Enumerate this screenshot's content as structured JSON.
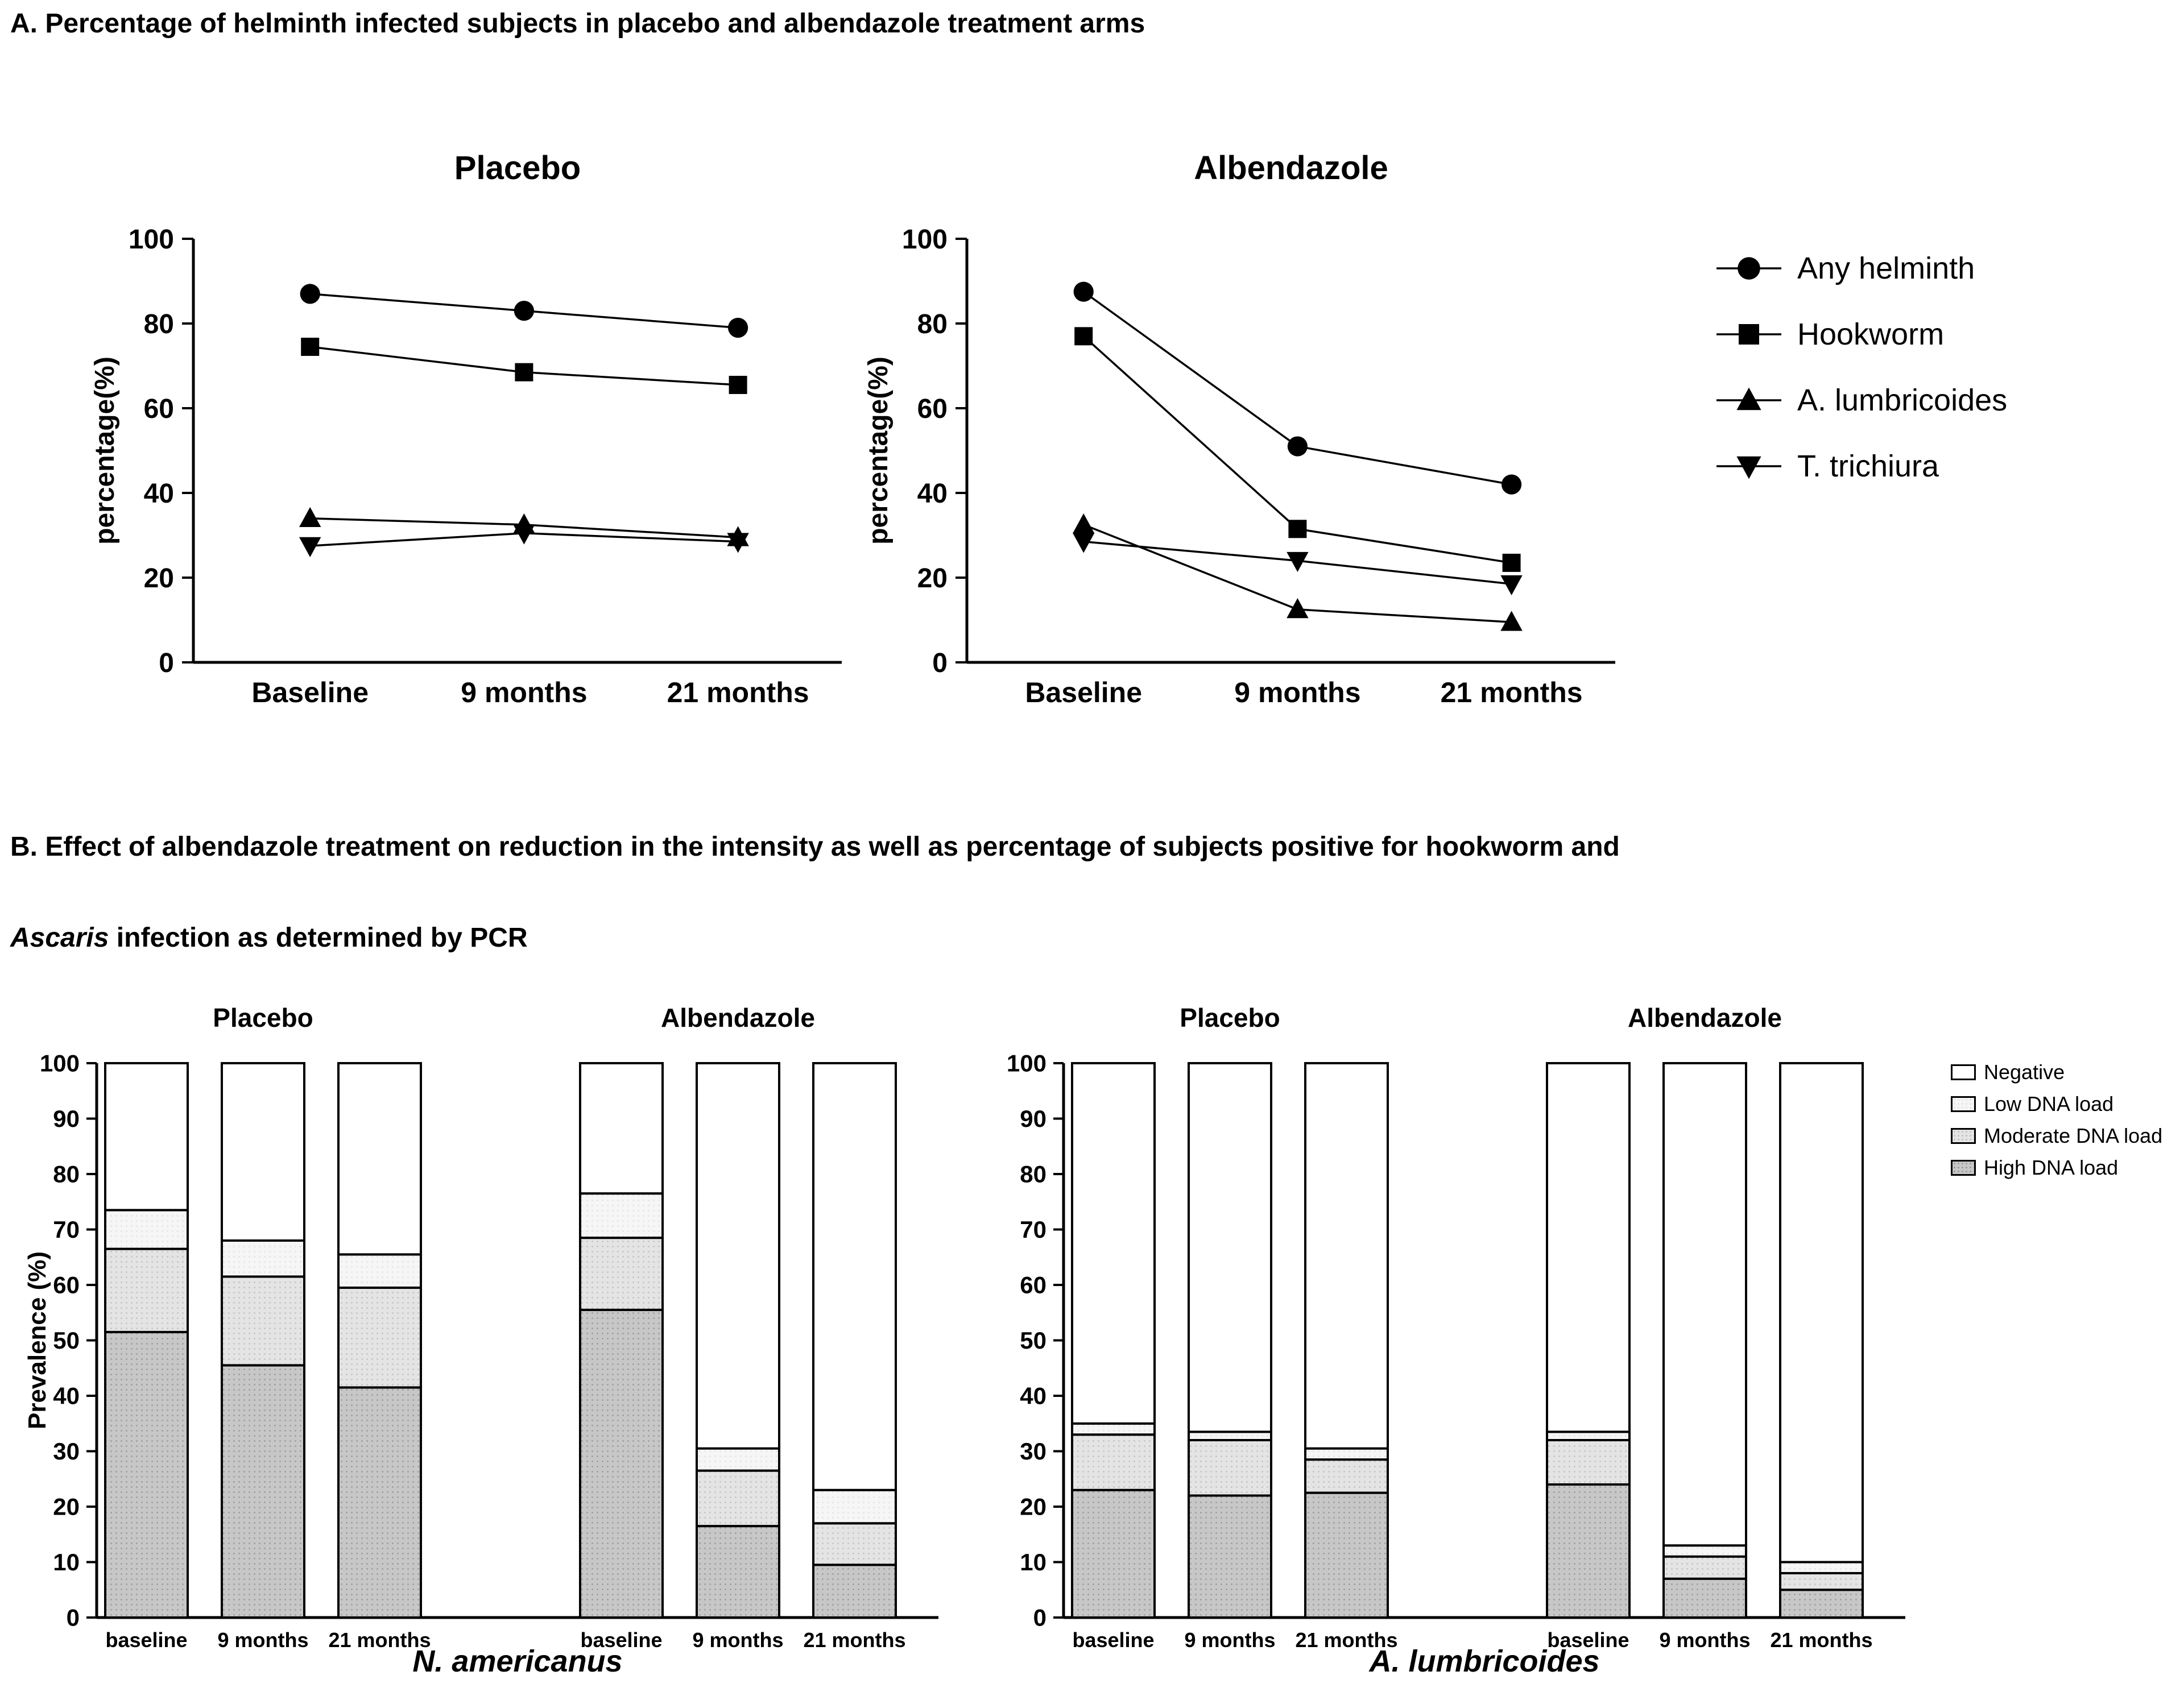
{
  "panel_a": {
    "title": "A. Percentage of helminth infected subjects in placebo and albendazole treatment arms",
    "legend": [
      {
        "label": "Any helminth",
        "marker": "circle"
      },
      {
        "label": "Hookworm",
        "marker": "square"
      },
      {
        "label": "A. lumbricoides",
        "marker": "triangle-up"
      },
      {
        "label": "T. trichiura",
        "marker": "triangle-down"
      }
    ]
  },
  "panel_b": {
    "title_line1": "B. Effect of albendazole treatment on reduction in the intensity as well as percentage of subjects positive for hookworm and",
    "title_italic": "Ascaris",
    "title_rest": " infection as determined by PCR",
    "legend": [
      {
        "label": "Negative",
        "key": "negative"
      },
      {
        "label": "Low DNA load",
        "key": "low"
      },
      {
        "label": "Moderate DNA load",
        "key": "moderate"
      },
      {
        "label": "High DNA load",
        "key": "high"
      }
    ],
    "colors": {
      "high": {
        "bg": "#c7c7c7",
        "dot": "#9b9b9b"
      },
      "moderate": {
        "bg": "#e4e4e4",
        "dot": "#c2c2c2"
      },
      "low": {
        "bg": "#f6f6f6",
        "dot": "#e3e3e3"
      },
      "negative": {
        "bg": "#ffffff",
        "dot": "#ffffff"
      }
    }
  },
  "chart_data": [
    {
      "id": "a-placebo",
      "type": "line",
      "title": "Placebo",
      "ylabel": "percentage(%)",
      "ylim": [
        0,
        100
      ],
      "yticks": [
        0,
        20,
        40,
        60,
        80,
        100
      ],
      "categories": [
        "Baseline",
        "9 months",
        "21 months"
      ],
      "series": [
        {
          "name": "Any helminth",
          "marker": "circle",
          "values": [
            87,
            83,
            79
          ]
        },
        {
          "name": "Hookworm",
          "marker": "square",
          "values": [
            74.5,
            68.5,
            65.5
          ]
        },
        {
          "name": "A. lumbricoides",
          "marker": "triangle-up",
          "values": [
            34,
            32.5,
            29.5
          ]
        },
        {
          "name": "T. trichiura",
          "marker": "triangle-down",
          "values": [
            27.5,
            30.5,
            28.5
          ]
        }
      ]
    },
    {
      "id": "a-albendazole",
      "type": "line",
      "title": "Albendazole",
      "ylabel": "percentage(%)",
      "ylim": [
        0,
        100
      ],
      "yticks": [
        0,
        20,
        40,
        60,
        80,
        100
      ],
      "categories": [
        "Baseline",
        "9 months",
        "21 months"
      ],
      "series": [
        {
          "name": "Any helminth",
          "marker": "circle",
          "values": [
            87.5,
            51,
            42
          ]
        },
        {
          "name": "Hookworm",
          "marker": "square",
          "values": [
            77,
            31.5,
            23.5
          ]
        },
        {
          "name": "A. lumbricoides",
          "marker": "triangle-up",
          "values": [
            32.5,
            12.5,
            9.5
          ]
        },
        {
          "name": "T. trichiura",
          "marker": "triangle-down",
          "values": [
            28.5,
            24,
            18.5
          ]
        }
      ]
    },
    {
      "id": "b-namericanus",
      "type": "stacked-bar",
      "xlabel": "N. americanus",
      "ylabel": "Prevalence (%)",
      "ylim": [
        0,
        100
      ],
      "yticks": [
        0,
        10,
        20,
        30,
        40,
        50,
        60,
        70,
        80,
        90,
        100
      ],
      "categories": [
        "baseline",
        "9 months",
        "21 months"
      ],
      "groups": [
        {
          "title": "Placebo",
          "bars": [
            {
              "category": "baseline",
              "values": {
                "high": 51.5,
                "moderate": 15,
                "low": 7,
                "negative": 26.5
              }
            },
            {
              "category": "9 months",
              "values": {
                "high": 45.5,
                "moderate": 16,
                "low": 6.5,
                "negative": 32
              }
            },
            {
              "category": "21 months",
              "values": {
                "high": 41.5,
                "moderate": 18,
                "low": 6,
                "negative": 34.5
              }
            }
          ]
        },
        {
          "title": "Albendazole",
          "bars": [
            {
              "category": "baseline",
              "values": {
                "high": 55.5,
                "moderate": 13,
                "low": 8,
                "negative": 23.5
              }
            },
            {
              "category": "9 months",
              "values": {
                "high": 16.5,
                "moderate": 10,
                "low": 4,
                "negative": 69.5
              }
            },
            {
              "category": "21 months",
              "values": {
                "high": 9.5,
                "moderate": 7.5,
                "low": 6,
                "negative": 77
              }
            }
          ]
        }
      ]
    },
    {
      "id": "b-alumbricoides",
      "type": "stacked-bar",
      "xlabel": "A. lumbricoides",
      "ylabel": "",
      "ylim": [
        0,
        100
      ],
      "yticks": [
        0,
        10,
        20,
        30,
        40,
        50,
        60,
        70,
        80,
        90,
        100
      ],
      "categories": [
        "baseline",
        "9 months",
        "21 months"
      ],
      "groups": [
        {
          "title": "Placebo",
          "bars": [
            {
              "category": "baseline",
              "values": {
                "high": 23,
                "moderate": 10,
                "low": 2,
                "negative": 65
              }
            },
            {
              "category": "9 months",
              "values": {
                "high": 22,
                "moderate": 10,
                "low": 1.5,
                "negative": 66.5
              }
            },
            {
              "category": "21 months",
              "values": {
                "high": 22.5,
                "moderate": 6,
                "low": 2,
                "negative": 69.5
              }
            }
          ]
        },
        {
          "title": "Albendazole",
          "bars": [
            {
              "category": "baseline",
              "values": {
                "high": 24,
                "moderate": 8,
                "low": 1.5,
                "negative": 66.5
              }
            },
            {
              "category": "9 months",
              "values": {
                "high": 7,
                "moderate": 4,
                "low": 2,
                "negative": 87
              }
            },
            {
              "category": "21 months",
              "values": {
                "high": 5,
                "moderate": 3,
                "low": 2,
                "negative": 90
              }
            }
          ]
        }
      ]
    }
  ]
}
